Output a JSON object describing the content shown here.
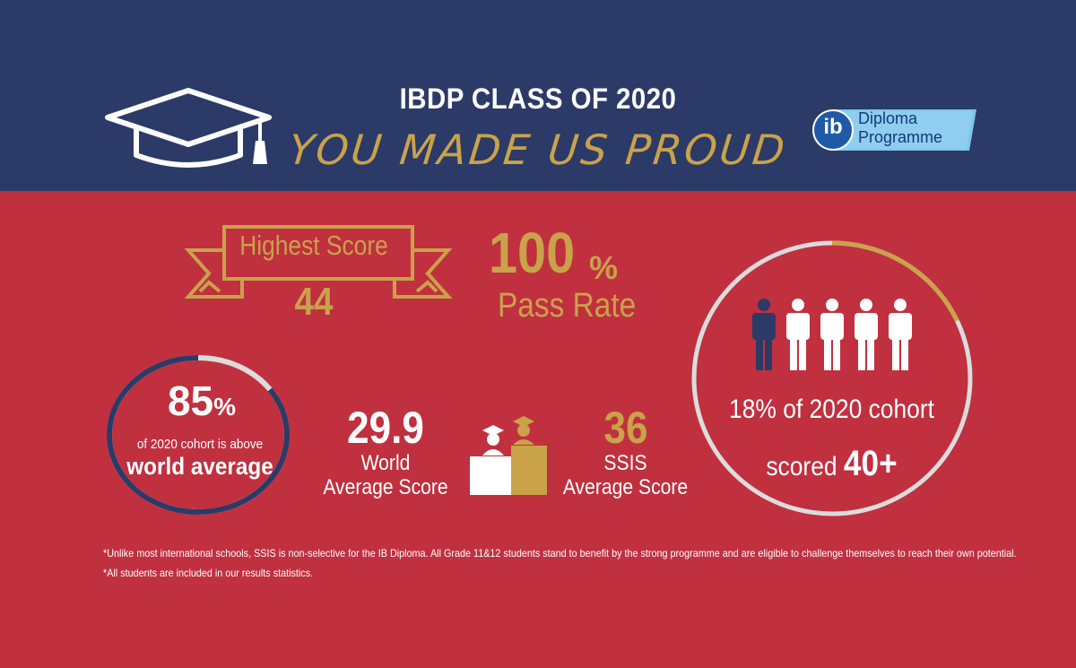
{
  "header": {
    "title": "IBDP CLASS OF 2020",
    "subtitle": "YOU MADE US PROUD",
    "logo": {
      "line1": "Diploma",
      "line2": "Programme",
      "mark": "ib"
    }
  },
  "highest_score": {
    "label": "Highest Score",
    "value": "44"
  },
  "pass_rate": {
    "number": "100",
    "unit": "%",
    "label": "Pass Rate",
    "fraction": 1.0
  },
  "above_world": {
    "number": "85",
    "unit": "%",
    "text": "of 2020 cohort is above",
    "strong": "world average",
    "fraction": 0.85
  },
  "world_average": {
    "value": "29.9",
    "label_line1": "World",
    "label_line2": "Average Score"
  },
  "ssis_average": {
    "value": "36",
    "label_line1": "SSIS",
    "label_line2": "Average Score"
  },
  "cohort": {
    "text": "18% of 2020 cohort",
    "scored_prefix": "scored",
    "scored_value": "40+",
    "fraction": 0.18,
    "people_highlighted": 1,
    "people_total": 5
  },
  "footnotes": [
    "*Unlike most international schools, SSIS is non-selective for the IB Diploma. All Grade 11&12 students stand to benefit by the strong programme and are eligible to challenge themselves to reach their own potential.",
    "*All students are included in our results statistics."
  ],
  "colors": {
    "navy": "#2b3a67",
    "red": "#c0303f",
    "gold": "#c9a24a",
    "light_ring": "#dcdcdc",
    "white": "#ffffff"
  }
}
